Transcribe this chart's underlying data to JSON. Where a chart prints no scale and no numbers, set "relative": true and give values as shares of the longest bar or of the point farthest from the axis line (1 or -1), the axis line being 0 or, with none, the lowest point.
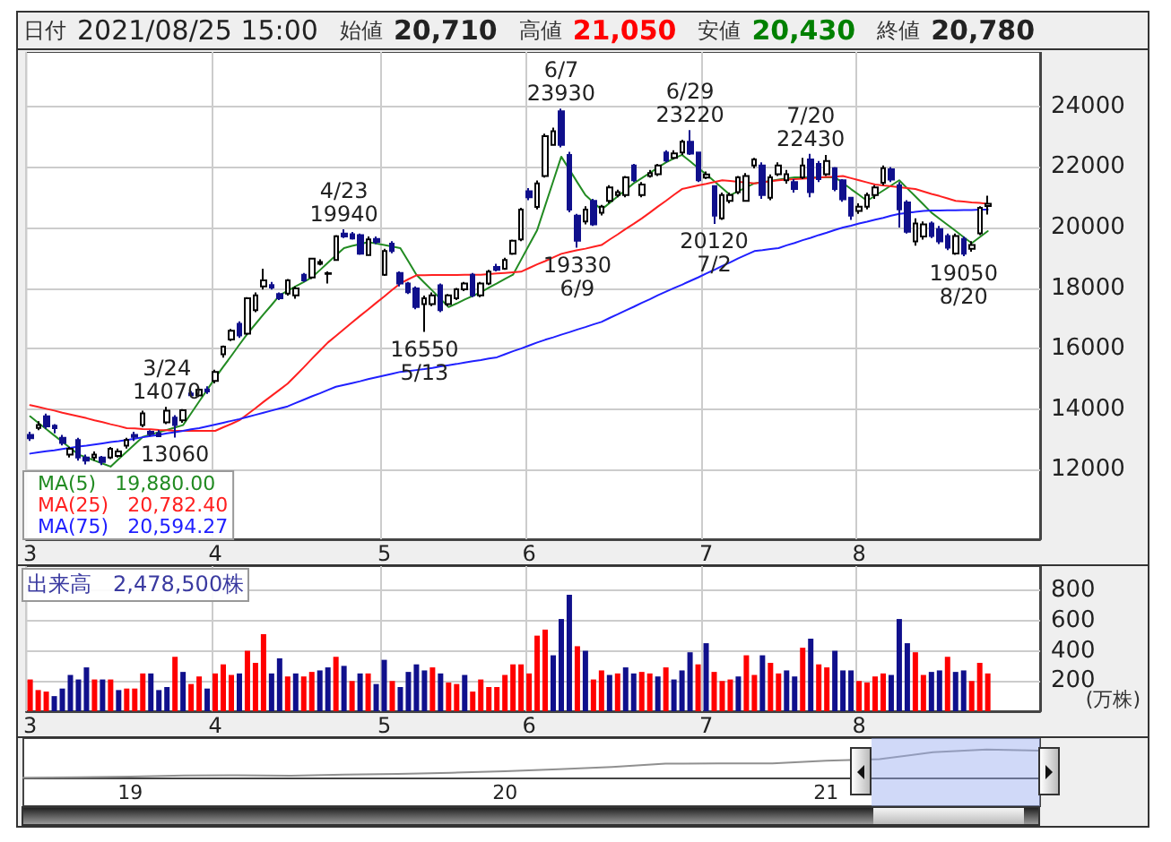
{
  "chart_data": [
    {
      "type": "candlestick",
      "annotations": [
        "日付",
        "2021/08/25 15:00",
        "始値",
        "20,710",
        "高値",
        "21,050",
        "安値",
        "20,430",
        "終値",
        "20,780",
        {
          "text": "3/24\n14070",
          "y": 14070
        },
        {
          "text": "13060",
          "y": 13060
        },
        {
          "text": "4/23\n19940",
          "y": 19940
        },
        {
          "text": "16550\n5/13",
          "y": 16550
        },
        {
          "text": "6/7\n23930",
          "y": 23930
        },
        {
          "text": "19330\n6/9",
          "y": 19330
        },
        {
          "text": "6/29\n23220",
          "y": 23220
        },
        {
          "text": "20120\n7/2",
          "y": 20120
        },
        {
          "text": "7/20\n22430",
          "y": 22430
        },
        {
          "text": "19050\n8/20",
          "y": 19050
        }
      ],
      "categories": [
        "3",
        null,
        null,
        null,
        null,
        null,
        null,
        null,
        null,
        null,
        null,
        null,
        null,
        null,
        null,
        null,
        null,
        null,
        null,
        null,
        null,
        null,
        null,
        "4",
        null,
        null,
        null,
        null,
        null,
        null,
        null,
        null,
        null,
        null,
        null,
        null,
        null,
        null,
        null,
        null,
        null,
        null,
        null,
        null,
        "5",
        null,
        null,
        null,
        null,
        null,
        null,
        null,
        null,
        null,
        null,
        null,
        null,
        null,
        null,
        null,
        null,
        null,
        "6",
        null,
        null,
        null,
        null,
        null,
        null,
        null,
        null,
        null,
        null,
        null,
        null,
        null,
        null,
        null,
        null,
        null,
        null,
        null,
        null,
        null,
        "7",
        null,
        null,
        null,
        null,
        null,
        null,
        null,
        null,
        null,
        null,
        null,
        null,
        null,
        null,
        null,
        null,
        null,
        null,
        "8",
        null,
        null,
        null,
        null,
        null,
        null,
        null,
        null,
        null,
        null,
        null,
        null,
        null,
        null,
        null,
        null
      ],
      "ohlc": [
        [
          13150,
          13250,
          12950,
          13040
        ],
        [
          13380,
          13600,
          13300,
          13470
        ],
        [
          13760,
          13850,
          13350,
          13430
        ],
        [
          13450,
          13500,
          13200,
          13370
        ],
        [
          13050,
          13150,
          12800,
          12880
        ],
        [
          12500,
          12750,
          12400,
          12690
        ],
        [
          12980,
          13050,
          12300,
          12400
        ],
        [
          12400,
          12500,
          12170,
          12300
        ],
        [
          12400,
          12600,
          12300,
          12500
        ],
        [
          12400,
          12450,
          12150,
          12250
        ],
        [
          12400,
          12750,
          12350,
          12690
        ],
        [
          12450,
          12700,
          12400,
          12600
        ],
        [
          12790,
          13050,
          12700,
          12980
        ],
        [
          13150,
          13250,
          12950,
          13080
        ],
        [
          13470,
          13950,
          13400,
          13860
        ],
        [
          13250,
          13300,
          13100,
          13180
        ],
        [
          13200,
          13300,
          13080,
          13100
        ],
        [
          13560,
          14070,
          13500,
          13950
        ],
        [
          13720,
          13800,
          13060,
          13470
        ],
        [
          13630,
          14000,
          13550,
          13960
        ],
        [
          14520,
          14600,
          14400,
          14460
        ],
        [
          14450,
          14700,
          14400,
          14640
        ],
        [
          14650,
          14750,
          14500,
          14580
        ],
        [
          14930,
          15300,
          14850,
          15230
        ],
        [
          15810,
          16100,
          15700,
          16060
        ],
        [
          16300,
          16650,
          16250,
          16590
        ],
        [
          16820,
          16900,
          16350,
          16430
        ],
        [
          16490,
          17700,
          16450,
          17660
        ],
        [
          17270,
          17850,
          17200,
          17760
        ],
        [
          18050,
          18640,
          17950,
          18250
        ],
        [
          18100,
          18200,
          17950,
          18020
        ],
        [
          17800,
          17850,
          17600,
          17660
        ],
        [
          17820,
          18300,
          17750,
          18250
        ],
        [
          17760,
          18050,
          17650,
          17990
        ],
        [
          18440,
          18500,
          18200,
          18250
        ],
        [
          18350,
          19000,
          18300,
          18970
        ],
        [
          18800,
          18950,
          18750,
          18860
        ],
        [
          18470,
          18550,
          18150,
          18490
        ],
        [
          18930,
          19750,
          18900,
          19710
        ],
        [
          19800,
          19940,
          19650,
          19700
        ],
        [
          19780,
          19850,
          19600,
          19640
        ],
        [
          19750,
          19800,
          19100,
          19130
        ],
        [
          19090,
          19700,
          19060,
          19610
        ],
        [
          19620,
          19700,
          19450,
          19520
        ],
        [
          18440,
          19300,
          18400,
          19220
        ],
        [
          19470,
          19550,
          19150,
          19220
        ],
        [
          18500,
          18550,
          18050,
          18150
        ],
        [
          18150,
          18200,
          17800,
          17860
        ],
        [
          17990,
          18050,
          17300,
          17370
        ],
        [
          17470,
          17750,
          16550,
          17660
        ],
        [
          17470,
          17850,
          17400,
          17760
        ],
        [
          18090,
          18150,
          17200,
          17270
        ],
        [
          17470,
          17800,
          17400,
          17760
        ],
        [
          17660,
          18000,
          17600,
          17960
        ],
        [
          17960,
          18200,
          17900,
          18150
        ],
        [
          18440,
          18500,
          17700,
          17760
        ],
        [
          17760,
          18200,
          17700,
          18150
        ],
        [
          18150,
          18600,
          18100,
          18540
        ],
        [
          18700,
          18800,
          18550,
          18600
        ],
        [
          18640,
          19000,
          18600,
          18930
        ],
        [
          19130,
          19600,
          19100,
          19560
        ],
        [
          19610,
          20650,
          19550,
          20590
        ],
        [
          21200,
          21300,
          20900,
          21000
        ],
        [
          20680,
          21550,
          20600,
          21460
        ],
        [
          21700,
          23100,
          21650,
          23020
        ],
        [
          22730,
          23300,
          22700,
          23180
        ],
        [
          23840,
          23930,
          22650,
          22730
        ],
        [
          22400,
          22500,
          20500,
          20590
        ],
        [
          20390,
          20450,
          19330,
          19560
        ],
        [
          20200,
          20700,
          20100,
          20590
        ],
        [
          20880,
          20950,
          20050,
          20100
        ],
        [
          20490,
          20750,
          20400,
          20690
        ],
        [
          20880,
          21400,
          20800,
          21320
        ],
        [
          21070,
          21250,
          21000,
          21170
        ],
        [
          21070,
          21700,
          21000,
          21660
        ],
        [
          22050,
          22100,
          21500,
          21560
        ],
        [
          21070,
          21500,
          21000,
          21420
        ],
        [
          21700,
          21900,
          21650,
          21800
        ],
        [
          21760,
          22100,
          21700,
          22050
        ],
        [
          22480,
          22550,
          22150,
          22210
        ],
        [
          22300,
          22550,
          22250,
          22450
        ],
        [
          22480,
          22900,
          22400,
          22830
        ],
        [
          22830,
          23220,
          22400,
          22440
        ],
        [
          22480,
          22500,
          21500,
          21560
        ],
        [
          21650,
          21850,
          21600,
          21750
        ],
        [
          21370,
          21400,
          20120,
          20390
        ],
        [
          20300,
          21150,
          20250,
          21070
        ],
        [
          20880,
          21150,
          20800,
          21070
        ],
        [
          21170,
          21700,
          21100,
          21660
        ],
        [
          20880,
          21800,
          20850,
          21700
        ],
        [
          22050,
          22300,
          21950,
          22250
        ],
        [
          22050,
          22150,
          20950,
          21070
        ],
        [
          20980,
          21750,
          20900,
          21660
        ],
        [
          21760,
          22150,
          21700,
          22050
        ],
        [
          21560,
          21900,
          21450,
          21760
        ],
        [
          21500,
          21600,
          21150,
          21270
        ],
        [
          21660,
          22300,
          21600,
          22050
        ],
        [
          22250,
          22430,
          21000,
          21170
        ],
        [
          22100,
          22200,
          21500,
          21600
        ],
        [
          21760,
          22400,
          21700,
          22200
        ],
        [
          21960,
          22000,
          21200,
          21270
        ],
        [
          21560,
          21600,
          20850,
          20930
        ],
        [
          20980,
          21000,
          20250,
          20390
        ],
        [
          20550,
          20800,
          20450,
          20690
        ],
        [
          20690,
          21150,
          20600,
          21070
        ],
        [
          21070,
          21400,
          20950,
          21320
        ],
        [
          21480,
          22050,
          21400,
          21960
        ],
        [
          21920,
          22000,
          21500,
          21580
        ],
        [
          21400,
          21500,
          20000,
          20600
        ],
        [
          20830,
          20900,
          19800,
          19860
        ],
        [
          19540,
          20300,
          19400,
          20130
        ],
        [
          19700,
          20200,
          19600,
          20100
        ],
        [
          20130,
          20200,
          19650,
          19720
        ],
        [
          19950,
          20050,
          19450,
          19540
        ],
        [
          19720,
          19800,
          19250,
          19330
        ],
        [
          19140,
          19800,
          19100,
          19720
        ],
        [
          19620,
          19700,
          19050,
          19130
        ],
        [
          19300,
          19550,
          19200,
          19420
        ],
        [
          19810,
          20700,
          19750,
          20650
        ],
        [
          20710,
          21050,
          20430,
          20780
        ]
      ],
      "series": [
        {
          "name": "MA(5)   19,880.00",
          "type": "line",
          "color": "#228b22",
          "values": [
            13760,
            13550,
            13340,
            13130,
            12920,
            12710,
            12500,
            12400,
            12300,
            12200,
            12100,
            12350,
            12590,
            12840,
            13080,
            13160,
            13240,
            13310,
            13390,
            13470,
            13860,
            14250,
            14640,
            15030,
            15400,
            15760,
            16130,
            16490,
            16810,
            17130,
            17440,
            17760,
            17910,
            18060,
            18200,
            18350,
            18590,
            18840,
            19080,
            19320,
            19390,
            19450,
            19520,
            19470,
            19420,
            19370,
            19320,
            18880,
            18440,
            18170,
            17910,
            17640,
            17370,
            17490,
            17620,
            17740,
            17860,
            18010,
            18150,
            18300,
            18440,
            18930,
            19420,
            19910,
            20720,
            21530,
            22340,
            21920,
            21490,
            21070,
            20830,
            20590,
            20810,
            21030,
            21240,
            21460,
            21630,
            21800,
            21980,
            22150,
            22280,
            22400,
            22190,
            21970,
            21760,
            21530,
            21300,
            21070,
            21200,
            21330,
            21460,
            21500,
            21540,
            21580,
            21620,
            21660,
            21660,
            21660,
            21660,
            21660,
            21660,
            21470,
            21270,
            21080,
            20880,
            21050,
            21220,
            21390,
            21560,
            21290,
            21030,
            20760,
            20490,
            20290,
            20090,
            19890,
            19680,
            19480,
            19680,
            19880
          ]
        },
        {
          "name": "MA(25)   20,782.40",
          "type": "line",
          "color": "#ff2020",
          "values": [
            14130,
            14070,
            14010,
            13950,
            13880,
            13820,
            13760,
            13700,
            13630,
            13570,
            13500,
            13440,
            13370,
            13360,
            13340,
            13330,
            13310,
            13300,
            13280,
            13280,
            13280,
            13280,
            13280,
            13280,
            13400,
            13510,
            13630,
            13830,
            14030,
            14240,
            14440,
            14640,
            14840,
            15110,
            15380,
            15660,
            15930,
            16200,
            16420,
            16640,
            16860,
            17080,
            17290,
            17510,
            17720,
            17940,
            18150,
            18290,
            18420,
            18420,
            18430,
            18430,
            18430,
            18430,
            18440,
            18440,
            18440,
            18460,
            18480,
            18500,
            18520,
            18540,
            18660,
            18780,
            18890,
            19010,
            19130,
            19190,
            19250,
            19300,
            19360,
            19420,
            19600,
            19770,
            19950,
            20120,
            20300,
            20490,
            20690,
            20880,
            21080,
            21270,
            21330,
            21390,
            21440,
            21500,
            21560,
            21540,
            21510,
            21490,
            21460,
            21490,
            21530,
            21560,
            21580,
            21600,
            21610,
            21630,
            21650,
            21670,
            21680,
            21700,
            21630,
            21560,
            21490,
            21420,
            21390,
            21360,
            21330,
            21300,
            21270,
            21190,
            21110,
            21040,
            20960,
            20880,
            20860,
            20830,
            20810,
            20780
          ]
        },
        {
          "name": "MA(75)   20,594.27",
          "type": "line",
          "color": "#2020ff",
          "values": [
            12530,
            12570,
            12610,
            12640,
            12680,
            12720,
            12760,
            12790,
            12830,
            12870,
            12910,
            12940,
            12980,
            13020,
            13070,
            13110,
            13150,
            13200,
            13240,
            13280,
            13330,
            13370,
            13430,
            13490,
            13550,
            13610,
            13670,
            13740,
            13810,
            13880,
            13950,
            14020,
            14090,
            14200,
            14310,
            14420,
            14520,
            14630,
            14740,
            14800,
            14860,
            14920,
            14990,
            15050,
            15110,
            15170,
            15230,
            15260,
            15290,
            15320,
            15360,
            15410,
            15450,
            15490,
            15540,
            15580,
            15620,
            15670,
            15710,
            15810,
            15910,
            16000,
            16100,
            16200,
            16290,
            16370,
            16460,
            16540,
            16630,
            16710,
            16800,
            16880,
            17010,
            17130,
            17260,
            17380,
            17510,
            17630,
            17760,
            17880,
            18000,
            18110,
            18230,
            18350,
            18480,
            18600,
            18730,
            18850,
            18980,
            19100,
            19220,
            19250,
            19290,
            19320,
            19410,
            19490,
            19580,
            19660,
            19750,
            19830,
            19920,
            20000,
            20060,
            20130,
            20190,
            20260,
            20320,
            20390,
            20450,
            20480,
            20520,
            20550,
            20560,
            20560,
            20570,
            20570,
            20580,
            20580,
            20590,
            20590
          ]
        }
      ],
      "ylim": [
        9700,
        25800
      ],
      "yticks": [
        12000,
        14000,
        16000,
        18000,
        20000,
        22000,
        24000
      ],
      "grid": true,
      "legend": "bottom left",
      "marker": "none"
    },
    {
      "type": "bar",
      "annotations": [
        "出来高　2,478,500株"
      ],
      "ylabel": "(万株)",
      "categories": [
        "3",
        null,
        null,
        null,
        null,
        null,
        null,
        null,
        null,
        null,
        null,
        null,
        null,
        null,
        null,
        null,
        null,
        null,
        null,
        null,
        null,
        null,
        null,
        "4",
        null,
        null,
        null,
        null,
        null,
        null,
        null,
        null,
        null,
        null,
        null,
        null,
        null,
        null,
        null,
        null,
        null,
        null,
        null,
        null,
        "5",
        null,
        null,
        null,
        null,
        null,
        null,
        null,
        null,
        null,
        null,
        null,
        null,
        null,
        null,
        null,
        null,
        null,
        "6",
        null,
        null,
        null,
        null,
        null,
        null,
        null,
        null,
        null,
        null,
        null,
        null,
        null,
        null,
        null,
        null,
        null,
        null,
        null,
        null,
        null,
        "7",
        null,
        null,
        null,
        null,
        null,
        null,
        null,
        null,
        null,
        null,
        null,
        null,
        null,
        null,
        null,
        null,
        null,
        null,
        "8",
        null,
        null,
        null,
        null,
        null,
        null,
        null,
        null,
        null,
        null,
        null,
        null,
        null,
        null,
        null,
        null
      ],
      "values": [
        210,
        140,
        130,
        100,
        150,
        240,
        210,
        290,
        210,
        210,
        210,
        140,
        150,
        150,
        250,
        250,
        140,
        160,
        360,
        260,
        180,
        230,
        150,
        250,
        310,
        240,
        250,
        400,
        320,
        510,
        250,
        350,
        230,
        250,
        230,
        260,
        270,
        290,
        360,
        300,
        200,
        250,
        250,
        180,
        340,
        200,
        160,
        260,
        310,
        270,
        290,
        250,
        190,
        180,
        240,
        130,
        210,
        160,
        160,
        240,
        310,
        310,
        250,
        500,
        540,
        370,
        610,
        770,
        430,
        400,
        210,
        270,
        240,
        250,
        290,
        250,
        260,
        250,
        230,
        290,
        210,
        270,
        390,
        310,
        450,
        260,
        200,
        210,
        230,
        370,
        240,
        370,
        320,
        250,
        270,
        230,
        420,
        480,
        310,
        290,
        400,
        270,
        270,
        200,
        190,
        230,
        250,
        240,
        610,
        450,
        390,
        240,
        260,
        270,
        360,
        260,
        270,
        200,
        320,
        250
      ],
      "colors": [
        "#ff0000",
        "#ff0000",
        "#ff0000",
        "#10108c",
        "#10108c",
        "#10108c",
        "#10108c",
        "#10108c",
        "#ff0000",
        "#10108c",
        "#ff0000",
        "#10108c",
        "#ff0000",
        "#ff0000",
        "#ff0000",
        "#10108c",
        "#10108c",
        "#10108c",
        "#ff0000",
        "#10108c",
        "#ff0000",
        "#ff0000",
        "#10108c",
        "#ff0000",
        "#ff0000",
        "#ff0000",
        "#10108c",
        "#ff0000",
        "#ff0000",
        "#ff0000",
        "#10108c",
        "#10108c",
        "#ff0000",
        "#10108c",
        "#ff0000",
        "#ff0000",
        "#10108c",
        "#10108c",
        "#ff0000",
        "#10108c",
        "#ff0000",
        "#10108c",
        "#ff0000",
        "#10108c",
        "#10108c",
        "#ff0000",
        "#10108c",
        "#10108c",
        "#10108c",
        "#10108c",
        "#ff0000",
        "#10108c",
        "#ff0000",
        "#ff0000",
        "#10108c",
        "#ff0000",
        "#ff0000",
        "#ff0000",
        "#ff0000",
        "#ff0000",
        "#ff0000",
        "#ff0000",
        "#ff0000",
        "#ff0000",
        "#ff0000",
        "#10108c",
        "#10108c",
        "#10108c",
        "#ff0000",
        "#10108c",
        "#ff0000",
        "#ff0000",
        "#10108c",
        "#ff0000",
        "#10108c",
        "#10108c",
        "#ff0000",
        "#ff0000",
        "#10108c",
        "#ff0000",
        "#10108c",
        "#10108c",
        "#10108c",
        "#ff0000",
        "#10108c",
        "#ff0000",
        "#ff0000",
        "#ff0000",
        "#10108c",
        "#ff0000",
        "#ff0000",
        "#10108c",
        "#ff0000",
        "#ff0000",
        "#10108c",
        "#10108c",
        "#ff0000",
        "#10108c",
        "#ff0000",
        "#ff0000",
        "#10108c",
        "#10108c",
        "#10108c",
        "#ff0000",
        "#ff0000",
        "#ff0000",
        "#ff0000",
        "#10108c",
        "#10108c",
        "#10108c",
        "#ff0000",
        "#ff0000",
        "#10108c",
        "#10108c",
        "#ff0000",
        "#10108c",
        "#10108c",
        "#ff0000",
        "#ff0000",
        "#ff0000"
      ],
      "ylim": [
        0,
        960
      ],
      "yticks": [
        200,
        400,
        600,
        800
      ],
      "grid": true
    },
    {
      "type": "line",
      "relative": true,
      "color": "#909090",
      "categories": [
        null,
        null,
        "19",
        null,
        null,
        null,
        null,
        null,
        null,
        "20",
        null,
        null,
        null,
        null,
        null,
        "21",
        null,
        null,
        null,
        null
      ],
      "values": [
        0,
        0.02,
        0.04,
        0.08,
        0.09,
        0.07,
        0.11,
        0.14,
        0.18,
        0.23,
        0.3,
        0.38,
        0.5,
        0.51,
        0.51,
        0.6,
        0.66,
        0.9,
        1,
        0.96
      ],
      "grid": false,
      "marker": "none"
    }
  ]
}
